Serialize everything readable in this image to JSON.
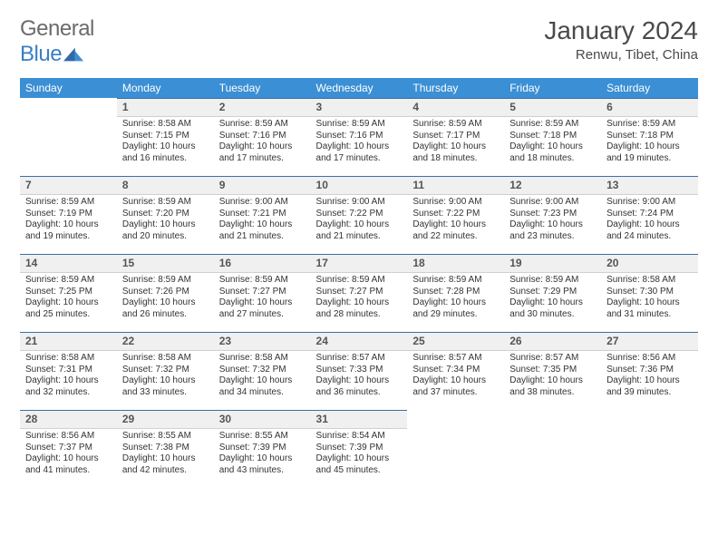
{
  "logo": {
    "text1": "General",
    "text2": "Blue"
  },
  "title": "January 2024",
  "location": "Renwu, Tibet, China",
  "colors": {
    "header_bg": "#3b8fd4",
    "header_text": "#ffffff",
    "daynum_bg": "#f0f0f0",
    "daynum_border_top": "#3b6fa4",
    "body_text": "#333333",
    "logo_gray": "#6b6b6b",
    "logo_blue": "#3b7fc4"
  },
  "weekdays": [
    "Sunday",
    "Monday",
    "Tuesday",
    "Wednesday",
    "Thursday",
    "Friday",
    "Saturday"
  ],
  "weeks": [
    [
      null,
      {
        "n": "1",
        "sr": "8:58 AM",
        "ss": "7:15 PM",
        "dl": "10 hours and 16 minutes."
      },
      {
        "n": "2",
        "sr": "8:59 AM",
        "ss": "7:16 PM",
        "dl": "10 hours and 17 minutes."
      },
      {
        "n": "3",
        "sr": "8:59 AM",
        "ss": "7:16 PM",
        "dl": "10 hours and 17 minutes."
      },
      {
        "n": "4",
        "sr": "8:59 AM",
        "ss": "7:17 PM",
        "dl": "10 hours and 18 minutes."
      },
      {
        "n": "5",
        "sr": "8:59 AM",
        "ss": "7:18 PM",
        "dl": "10 hours and 18 minutes."
      },
      {
        "n": "6",
        "sr": "8:59 AM",
        "ss": "7:18 PM",
        "dl": "10 hours and 19 minutes."
      }
    ],
    [
      {
        "n": "7",
        "sr": "8:59 AM",
        "ss": "7:19 PM",
        "dl": "10 hours and 19 minutes."
      },
      {
        "n": "8",
        "sr": "8:59 AM",
        "ss": "7:20 PM",
        "dl": "10 hours and 20 minutes."
      },
      {
        "n": "9",
        "sr": "9:00 AM",
        "ss": "7:21 PM",
        "dl": "10 hours and 21 minutes."
      },
      {
        "n": "10",
        "sr": "9:00 AM",
        "ss": "7:22 PM",
        "dl": "10 hours and 21 minutes."
      },
      {
        "n": "11",
        "sr": "9:00 AM",
        "ss": "7:22 PM",
        "dl": "10 hours and 22 minutes."
      },
      {
        "n": "12",
        "sr": "9:00 AM",
        "ss": "7:23 PM",
        "dl": "10 hours and 23 minutes."
      },
      {
        "n": "13",
        "sr": "9:00 AM",
        "ss": "7:24 PM",
        "dl": "10 hours and 24 minutes."
      }
    ],
    [
      {
        "n": "14",
        "sr": "8:59 AM",
        "ss": "7:25 PM",
        "dl": "10 hours and 25 minutes."
      },
      {
        "n": "15",
        "sr": "8:59 AM",
        "ss": "7:26 PM",
        "dl": "10 hours and 26 minutes."
      },
      {
        "n": "16",
        "sr": "8:59 AM",
        "ss": "7:27 PM",
        "dl": "10 hours and 27 minutes."
      },
      {
        "n": "17",
        "sr": "8:59 AM",
        "ss": "7:27 PM",
        "dl": "10 hours and 28 minutes."
      },
      {
        "n": "18",
        "sr": "8:59 AM",
        "ss": "7:28 PM",
        "dl": "10 hours and 29 minutes."
      },
      {
        "n": "19",
        "sr": "8:59 AM",
        "ss": "7:29 PM",
        "dl": "10 hours and 30 minutes."
      },
      {
        "n": "20",
        "sr": "8:58 AM",
        "ss": "7:30 PM",
        "dl": "10 hours and 31 minutes."
      }
    ],
    [
      {
        "n": "21",
        "sr": "8:58 AM",
        "ss": "7:31 PM",
        "dl": "10 hours and 32 minutes."
      },
      {
        "n": "22",
        "sr": "8:58 AM",
        "ss": "7:32 PM",
        "dl": "10 hours and 33 minutes."
      },
      {
        "n": "23",
        "sr": "8:58 AM",
        "ss": "7:32 PM",
        "dl": "10 hours and 34 minutes."
      },
      {
        "n": "24",
        "sr": "8:57 AM",
        "ss": "7:33 PM",
        "dl": "10 hours and 36 minutes."
      },
      {
        "n": "25",
        "sr": "8:57 AM",
        "ss": "7:34 PM",
        "dl": "10 hours and 37 minutes."
      },
      {
        "n": "26",
        "sr": "8:57 AM",
        "ss": "7:35 PM",
        "dl": "10 hours and 38 minutes."
      },
      {
        "n": "27",
        "sr": "8:56 AM",
        "ss": "7:36 PM",
        "dl": "10 hours and 39 minutes."
      }
    ],
    [
      {
        "n": "28",
        "sr": "8:56 AM",
        "ss": "7:37 PM",
        "dl": "10 hours and 41 minutes."
      },
      {
        "n": "29",
        "sr": "8:55 AM",
        "ss": "7:38 PM",
        "dl": "10 hours and 42 minutes."
      },
      {
        "n": "30",
        "sr": "8:55 AM",
        "ss": "7:39 PM",
        "dl": "10 hours and 43 minutes."
      },
      {
        "n": "31",
        "sr": "8:54 AM",
        "ss": "7:39 PM",
        "dl": "10 hours and 45 minutes."
      },
      null,
      null,
      null
    ]
  ],
  "labels": {
    "sunrise": "Sunrise:",
    "sunset": "Sunset:",
    "daylight": "Daylight:"
  }
}
